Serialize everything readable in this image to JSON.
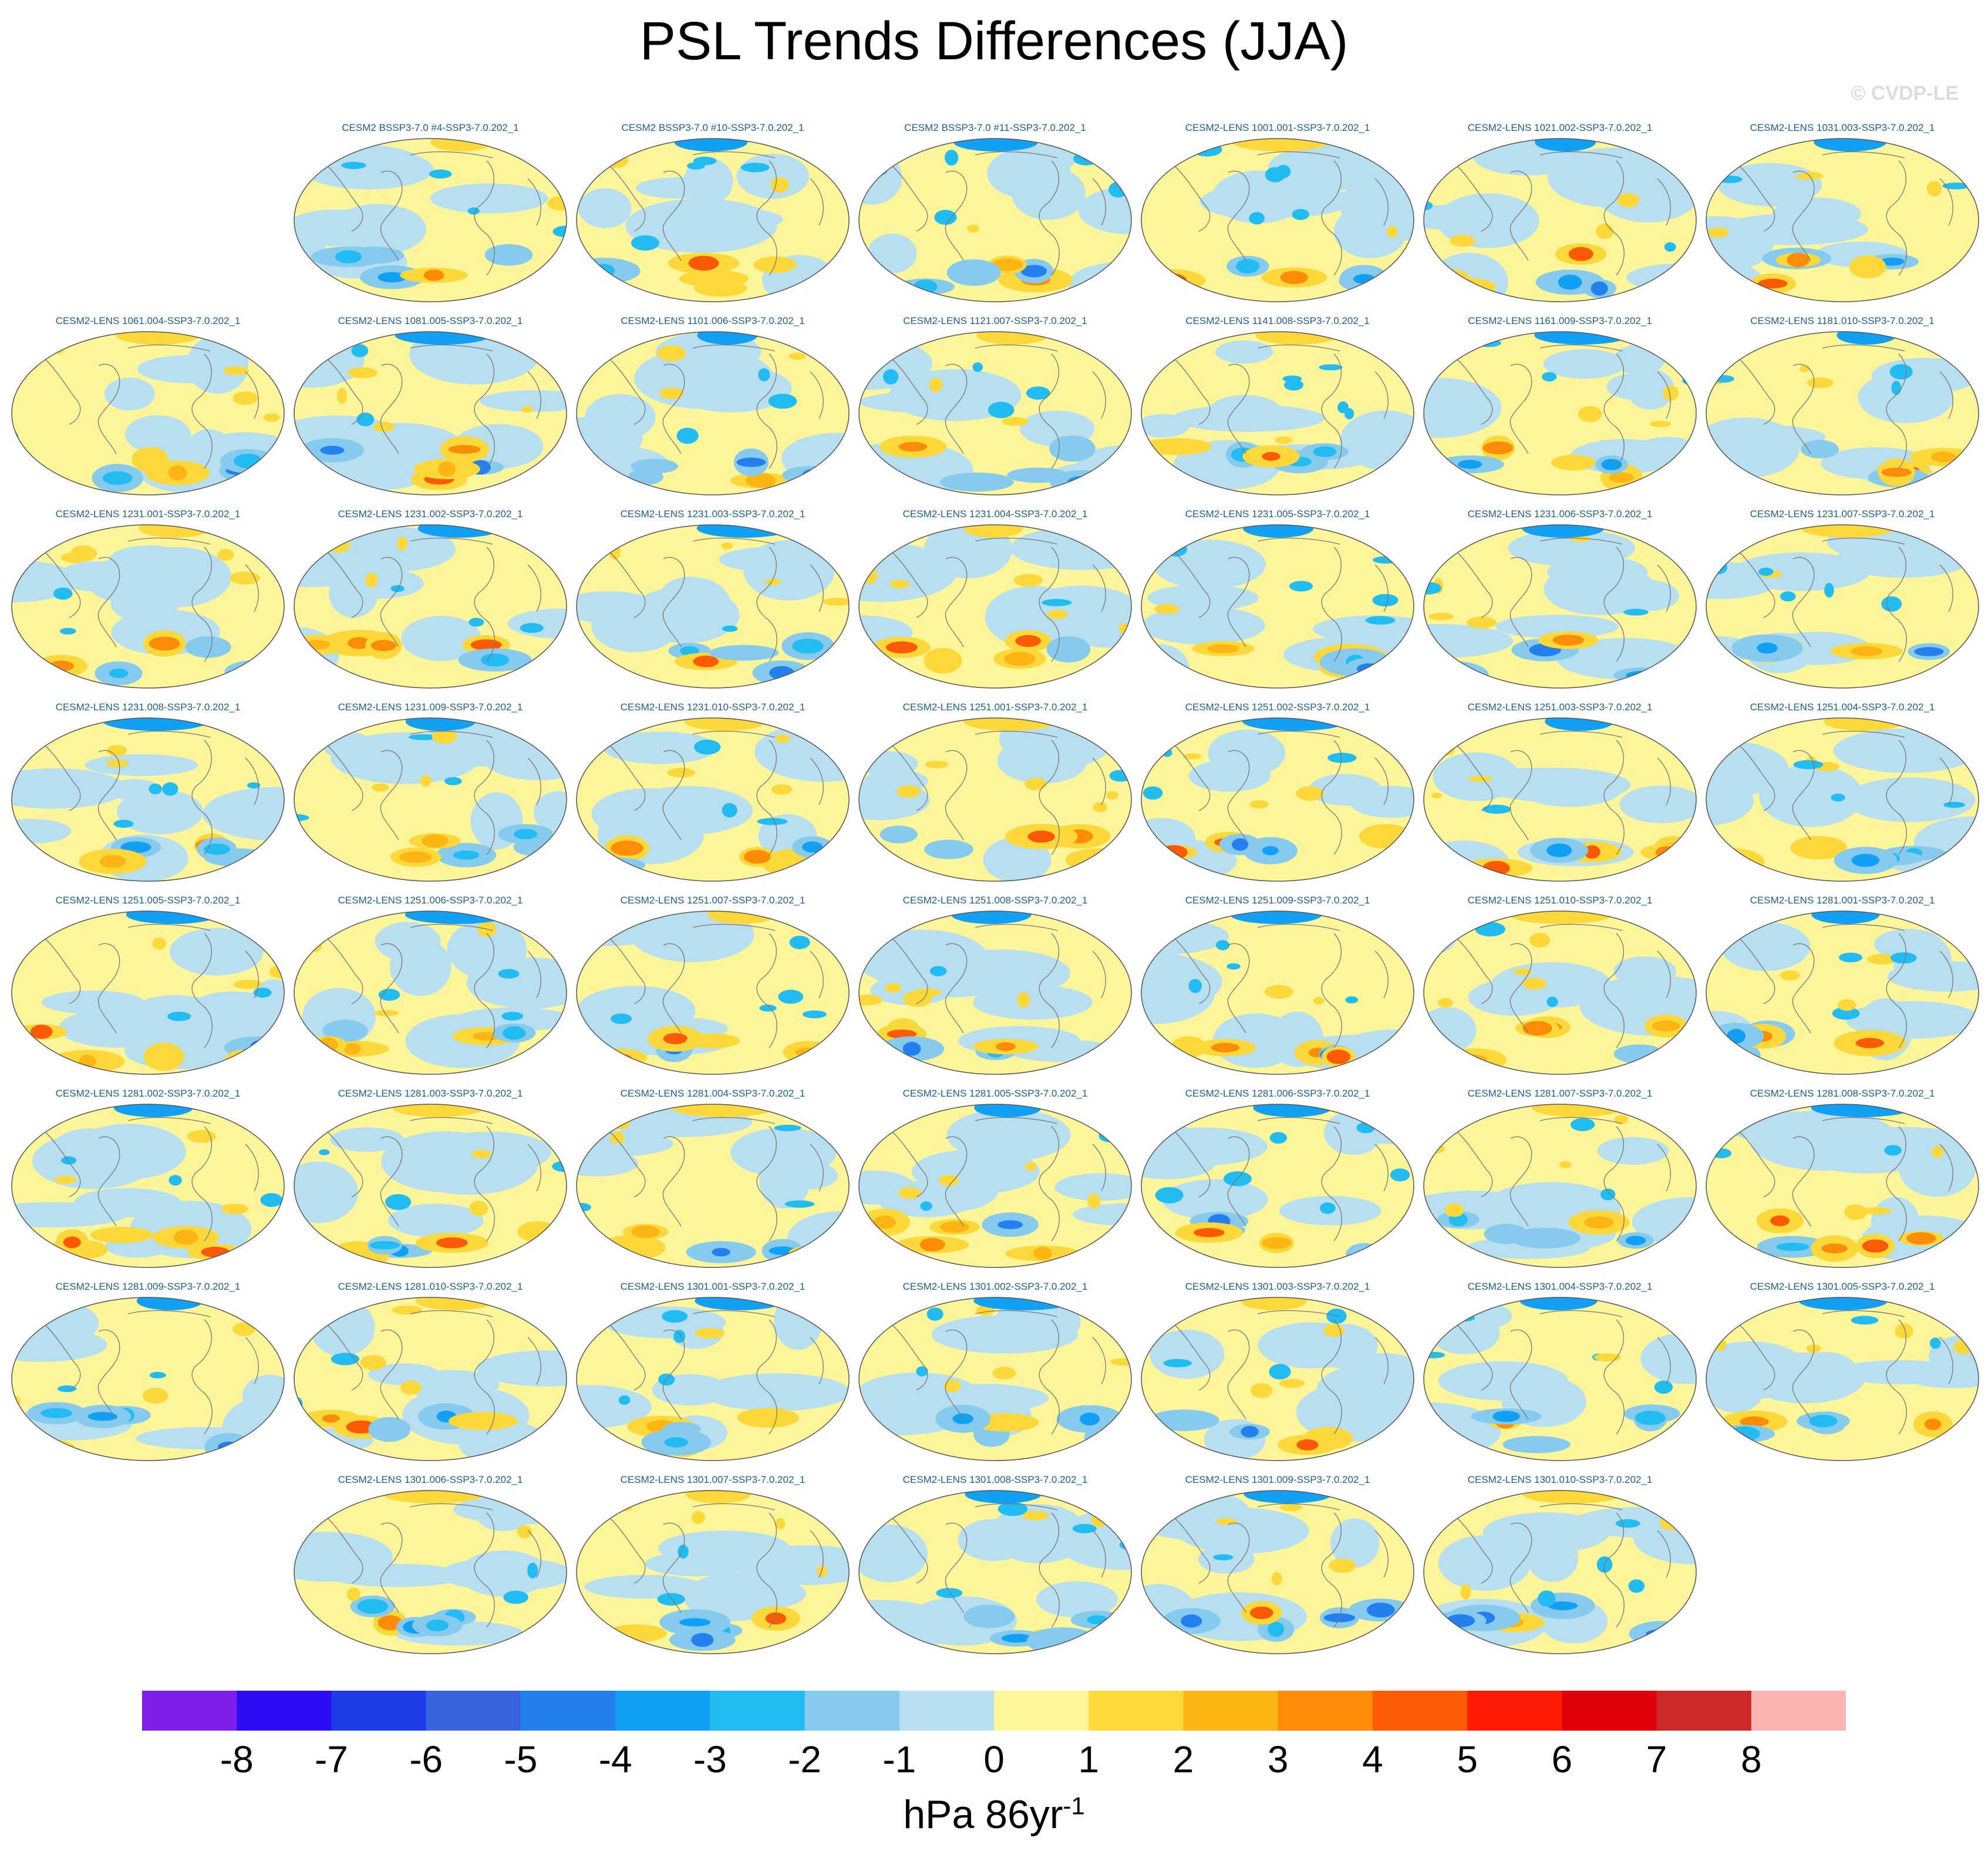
{
  "title": "PSL Trends Differences (JJA)",
  "copyright": "© CVDP-LE",
  "units": {
    "base": "hPa 86yr",
    "exponent": "-1"
  },
  "chart_data": {
    "type": "heatmap",
    "description_type": "map-panels",
    "title": "PSL Trends Differences (JJA)",
    "projection": "global ellipse (Robinson-like), centered on the Pacific",
    "panels": [
      {
        "row": 0,
        "col": 1,
        "label": "CESM2 BSSP3-7.0 #4-SSP3-7.0.202_1"
      },
      {
        "row": 0,
        "col": 2,
        "label": "CESM2 BSSP3-7.0 #10-SSP3-7.0.202_1"
      },
      {
        "row": 0,
        "col": 3,
        "label": "CESM2 BSSP3-7.0 #11-SSP3-7.0.202_1"
      },
      {
        "row": 0,
        "col": 4,
        "label": "CESM2-LENS 1001.001-SSP3-7.0.202_1"
      },
      {
        "row": 0,
        "col": 5,
        "label": "CESM2-LENS 1021.002-SSP3-7.0.202_1"
      },
      {
        "row": 0,
        "col": 6,
        "label": "CESM2-LENS 1031.003-SSP3-7.0.202_1"
      },
      {
        "row": 1,
        "col": 0,
        "label": "CESM2-LENS 1061.004-SSP3-7.0.202_1"
      },
      {
        "row": 1,
        "col": 1,
        "label": "CESM2-LENS 1081.005-SSP3-7.0.202_1"
      },
      {
        "row": 1,
        "col": 2,
        "label": "CESM2-LENS 1101.006-SSP3-7.0.202_1"
      },
      {
        "row": 1,
        "col": 3,
        "label": "CESM2-LENS 1121.007-SSP3-7.0.202_1"
      },
      {
        "row": 1,
        "col": 4,
        "label": "CESM2-LENS 1141.008-SSP3-7.0.202_1"
      },
      {
        "row": 1,
        "col": 5,
        "label": "CESM2-LENS 1161.009-SSP3-7.0.202_1"
      },
      {
        "row": 1,
        "col": 6,
        "label": "CESM2-LENS 1181.010-SSP3-7.0.202_1"
      },
      {
        "row": 2,
        "col": 0,
        "label": "CESM2-LENS 1231.001-SSP3-7.0.202_1"
      },
      {
        "row": 2,
        "col": 1,
        "label": "CESM2-LENS 1231.002-SSP3-7.0.202_1"
      },
      {
        "row": 2,
        "col": 2,
        "label": "CESM2-LENS 1231.003-SSP3-7.0.202_1"
      },
      {
        "row": 2,
        "col": 3,
        "label": "CESM2-LENS 1231.004-SSP3-7.0.202_1"
      },
      {
        "row": 2,
        "col": 4,
        "label": "CESM2-LENS 1231.005-SSP3-7.0.202_1"
      },
      {
        "row": 2,
        "col": 5,
        "label": "CESM2-LENS 1231.006-SSP3-7.0.202_1"
      },
      {
        "row": 2,
        "col": 6,
        "label": "CESM2-LENS 1231.007-SSP3-7.0.202_1"
      },
      {
        "row": 3,
        "col": 0,
        "label": "CESM2-LENS 1231.008-SSP3-7.0.202_1"
      },
      {
        "row": 3,
        "col": 1,
        "label": "CESM2-LENS 1231.009-SSP3-7.0.202_1"
      },
      {
        "row": 3,
        "col": 2,
        "label": "CESM2-LENS 1231.010-SSP3-7.0.202_1"
      },
      {
        "row": 3,
        "col": 3,
        "label": "CESM2-LENS 1251.001-SSP3-7.0.202_1"
      },
      {
        "row": 3,
        "col": 4,
        "label": "CESM2-LENS 1251.002-SSP3-7.0.202_1"
      },
      {
        "row": 3,
        "col": 5,
        "label": "CESM2-LENS 1251.003-SSP3-7.0.202_1"
      },
      {
        "row": 3,
        "col": 6,
        "label": "CESM2-LENS 1251.004-SSP3-7.0.202_1"
      },
      {
        "row": 4,
        "col": 0,
        "label": "CESM2-LENS 1251.005-SSP3-7.0.202_1"
      },
      {
        "row": 4,
        "col": 1,
        "label": "CESM2-LENS 1251.006-SSP3-7.0.202_1"
      },
      {
        "row": 4,
        "col": 2,
        "label": "CESM2-LENS 1251.007-SSP3-7.0.202_1"
      },
      {
        "row": 4,
        "col": 3,
        "label": "CESM2-LENS 1251.008-SSP3-7.0.202_1"
      },
      {
        "row": 4,
        "col": 4,
        "label": "CESM2-LENS 1251.009-SSP3-7.0.202_1"
      },
      {
        "row": 4,
        "col": 5,
        "label": "CESM2-LENS 1251.010-SSP3-7.0.202_1"
      },
      {
        "row": 4,
        "col": 6,
        "label": "CESM2-LENS 1281.001-SSP3-7.0.202_1"
      },
      {
        "row": 5,
        "col": 0,
        "label": "CESM2-LENS 1281.002-SSP3-7.0.202_1"
      },
      {
        "row": 5,
        "col": 1,
        "label": "CESM2-LENS 1281.003-SSP3-7.0.202_1"
      },
      {
        "row": 5,
        "col": 2,
        "label": "CESM2-LENS 1281.004-SSP3-7.0.202_1"
      },
      {
        "row": 5,
        "col": 3,
        "label": "CESM2-LENS 1281.005-SSP3-7.0.202_1"
      },
      {
        "row": 5,
        "col": 4,
        "label": "CESM2-LENS 1281.006-SSP3-7.0.202_1"
      },
      {
        "row": 5,
        "col": 5,
        "label": "CESM2-LENS 1281.007-SSP3-7.0.202_1"
      },
      {
        "row": 5,
        "col": 6,
        "label": "CESM2-LENS 1281.008-SSP3-7.0.202_1"
      },
      {
        "row": 6,
        "col": 0,
        "label": "CESM2-LENS 1281.009-SSP3-7.0.202_1"
      },
      {
        "row": 6,
        "col": 1,
        "label": "CESM2-LENS 1281.010-SSP3-7.0.202_1"
      },
      {
        "row": 6,
        "col": 2,
        "label": "CESM2-LENS 1301.001-SSP3-7.0.202_1"
      },
      {
        "row": 6,
        "col": 3,
        "label": "CESM2-LENS 1301.002-SSP3-7.0.202_1"
      },
      {
        "row": 6,
        "col": 4,
        "label": "CESM2-LENS 1301.003-SSP3-7.0.202_1"
      },
      {
        "row": 6,
        "col": 5,
        "label": "CESM2-LENS 1301.004-SSP3-7.0.202_1"
      },
      {
        "row": 6,
        "col": 6,
        "label": "CESM2-LENS 1301.005-SSP3-7.0.202_1"
      },
      {
        "row": 7,
        "col": 1,
        "label": "CESM2-LENS 1301.006-SSP3-7.0.202_1"
      },
      {
        "row": 7,
        "col": 2,
        "label": "CESM2-LENS 1301.007-SSP3-7.0.202_1"
      },
      {
        "row": 7,
        "col": 3,
        "label": "CESM2-LENS 1301.008-SSP3-7.0.202_1"
      },
      {
        "row": 7,
        "col": 4,
        "label": "CESM2-LENS 1301.009-SSP3-7.0.202_1"
      },
      {
        "row": 7,
        "col": 5,
        "label": "CESM2-LENS 1301.010-SSP3-7.0.202_1"
      }
    ],
    "colorbar": {
      "levels": [
        "-8",
        "-7",
        "-6",
        "-5",
        "-4",
        "-3",
        "-2",
        "-1",
        "0",
        "1",
        "2",
        "3",
        "4",
        "5",
        "6",
        "7",
        "8"
      ],
      "colors": [
        "#7e1fe8",
        "#2b0cf4",
        "#1f3de6",
        "#3a64dc",
        "#2480ee",
        "#12a0f4",
        "#22bcf2",
        "#86cbee",
        "#b8dff0",
        "#fdf59a",
        "#fdd83a",
        "#fdb514",
        "#fd8c08",
        "#fd5a05",
        "#fd1c06",
        "#e00008",
        "#cc2a2a",
        "#feb4b4"
      ],
      "units": "hPa 86yr-1"
    }
  }
}
